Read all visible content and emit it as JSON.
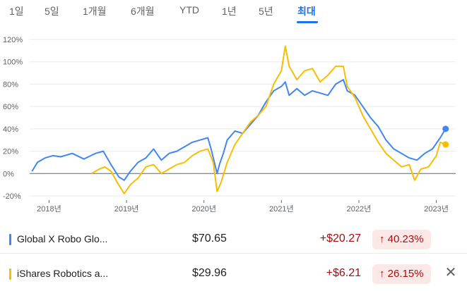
{
  "tabs": [
    {
      "label": "1일",
      "active": false
    },
    {
      "label": "5일",
      "active": false
    },
    {
      "label": "1개월",
      "active": false
    },
    {
      "label": "6개월",
      "active": false
    },
    {
      "label": "YTD",
      "active": false
    },
    {
      "label": "1년",
      "active": false
    },
    {
      "label": "5년",
      "active": false
    },
    {
      "label": "최대",
      "active": true
    }
  ],
  "colors": {
    "accent": "#1a73e8",
    "series1": "#4285f4",
    "series2": "#fbbc04",
    "negative": "#a50e0e",
    "negative_bg": "#fce8e6"
  },
  "chart_data": {
    "type": "line",
    "ylim": [
      -20,
      120
    ],
    "y_ticks": [
      "120%",
      "100%",
      "80%",
      "60%",
      "40%",
      "20%",
      "0%",
      "-20%"
    ],
    "y_tick_values": [
      120,
      100,
      80,
      60,
      40,
      20,
      0,
      -20
    ],
    "x_ticks": [
      "2018년",
      "2019년",
      "2020년",
      "2021년",
      "2022년",
      "2023년"
    ],
    "x_tick_values": [
      2018,
      2019,
      2020,
      2021,
      2022,
      2023
    ],
    "xlim": [
      2017.75,
      2023.25
    ],
    "grid": true,
    "series": [
      {
        "name": "Global X Robo Glo...",
        "color": "#4285f4",
        "x": [
          2017.78,
          2017.85,
          2017.95,
          2018.05,
          2018.15,
          2018.3,
          2018.45,
          2018.6,
          2018.7,
          2018.8,
          2018.9,
          2018.97,
          2019.05,
          2019.15,
          2019.25,
          2019.35,
          2019.45,
          2019.55,
          2019.65,
          2019.75,
          2019.85,
          2019.95,
          2020.05,
          2020.1,
          2020.17,
          2020.2,
          2020.25,
          2020.3,
          2020.4,
          2020.5,
          2020.6,
          2020.7,
          2020.8,
          2020.9,
          2021.0,
          2021.05,
          2021.1,
          2021.2,
          2021.3,
          2021.4,
          2021.5,
          2021.6,
          2021.7,
          2021.8,
          2021.85,
          2021.95,
          2022.05,
          2022.15,
          2022.25,
          2022.35,
          2022.45,
          2022.55,
          2022.65,
          2022.75,
          2022.85,
          2022.95,
          2023.05,
          2023.12
        ],
        "y": [
          2,
          10,
          14,
          16,
          15,
          18,
          13,
          18,
          20,
          8,
          -3,
          -6,
          2,
          10,
          14,
          22,
          12,
          18,
          20,
          24,
          28,
          30,
          32,
          20,
          0,
          8,
          18,
          30,
          38,
          36,
          44,
          52,
          64,
          74,
          78,
          82,
          70,
          76,
          70,
          74,
          72,
          70,
          80,
          84,
          74,
          70,
          60,
          50,
          42,
          30,
          22,
          18,
          14,
          12,
          18,
          22,
          32,
          40
        ]
      },
      {
        "name": "iShares Robotics a...",
        "color": "#fbbc04",
        "x": [
          2018.55,
          2018.65,
          2018.72,
          2018.8,
          2018.88,
          2018.97,
          2019.05,
          2019.15,
          2019.25,
          2019.35,
          2019.45,
          2019.55,
          2019.65,
          2019.75,
          2019.85,
          2019.95,
          2020.05,
          2020.12,
          2020.17,
          2020.22,
          2020.3,
          2020.4,
          2020.5,
          2020.6,
          2020.7,
          2020.8,
          2020.9,
          2021.0,
          2021.05,
          2021.1,
          2021.15,
          2021.2,
          2021.3,
          2021.4,
          2021.5,
          2021.6,
          2021.7,
          2021.8,
          2021.85,
          2021.95,
          2022.05,
          2022.15,
          2022.25,
          2022.35,
          2022.45,
          2022.55,
          2022.65,
          2022.72,
          2022.8,
          2022.9,
          2023.0,
          2023.05,
          2023.12
        ],
        "y": [
          0,
          4,
          6,
          2,
          -8,
          -18,
          -10,
          -4,
          6,
          8,
          0,
          4,
          8,
          10,
          16,
          20,
          22,
          10,
          -16,
          -8,
          10,
          26,
          36,
          46,
          52,
          60,
          80,
          92,
          114,
          96,
          90,
          84,
          92,
          94,
          82,
          88,
          96,
          96,
          78,
          68,
          52,
          40,
          28,
          18,
          12,
          6,
          8,
          -6,
          4,
          6,
          16,
          28,
          26
        ]
      }
    ]
  },
  "rows": [
    {
      "name": "Global X Robo Glo...",
      "price": "$70.65",
      "change": "+$20.27",
      "pct": "↑ 40.23%",
      "color": "#4285f4"
    },
    {
      "name": "iShares Robotics a...",
      "price": "$29.96",
      "change": "+$6.21",
      "pct": "↑ 26.15%",
      "color": "#fbbc04",
      "close_icon": "✕"
    }
  ]
}
